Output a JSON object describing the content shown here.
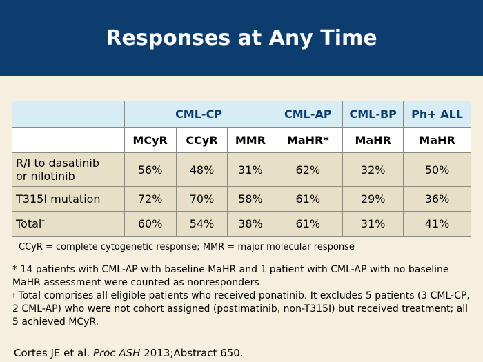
{
  "header": {
    "title": "Responses at Any Time"
  },
  "table": {
    "groups": [
      "CML-CP",
      "CML-AP",
      "CML-BP",
      "Ph+ ALL"
    ],
    "subheaders": [
      "MCyR",
      "CCyR",
      "MMR",
      "MaHR*",
      "MaHR",
      "MaHR"
    ],
    "rows": [
      {
        "label_line1": "R/I to dasatinib",
        "label_line2": "or nilotinib",
        "values": [
          "56%",
          "48%",
          "31%",
          "62%",
          "32%",
          "50%"
        ]
      },
      {
        "label": "T315I mutation",
        "values": [
          "72%",
          "70%",
          "58%",
          "61%",
          "29%",
          "36%"
        ]
      },
      {
        "label": "Total",
        "label_sup": "†",
        "values": [
          "60%",
          "54%",
          "38%",
          "61%",
          "31%",
          "41%"
        ]
      }
    ]
  },
  "abbreviations": "CCyR = complete cytogenetic response; MMR = major molecular response",
  "footnotes": {
    "star": "* 14 patients with CML-AP with baseline MaHR and 1 patient with CML-AP with no baseline MaHR assessment were counted as nonresponders",
    "dagger_mark": "†",
    "dagger": " Total comprises all eligible patients who received ponatinib. It excludes 5 patients (3 CML-CP, 2 CML-AP) who were not cohort assigned (postimatinib, non-T315I) but received treatment; all 5 achieved MCyR."
  },
  "citation": {
    "authors": "Cortes JE et al. ",
    "journal": "Proc ASH",
    "rest": " 2013;Abstract 650."
  },
  "colors": {
    "header_bg": "#0c3d6e",
    "page_bg": "#f4efdf",
    "header_row_bg": "#d8ecf6",
    "data_row_bg": "#e8dfc7"
  }
}
